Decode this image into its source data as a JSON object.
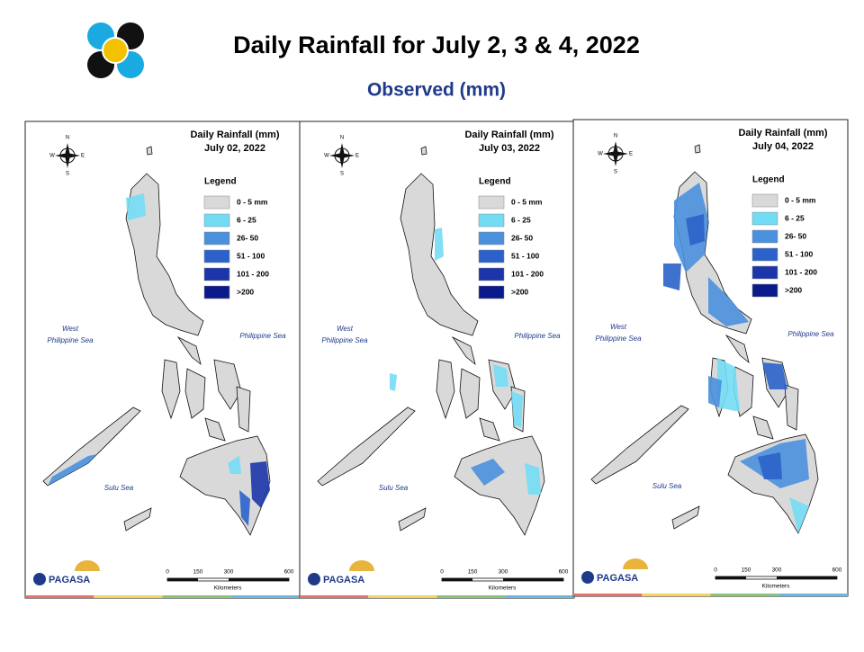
{
  "header": {
    "title": "Daily Rainfall for July 2, 3 & 4, 2022",
    "subtitle": "Observed (mm)"
  },
  "panels": [
    {
      "title": "Daily Rainfall (mm)",
      "date": "July 02, 2022",
      "legend_title": "Legend",
      "legend": [
        {
          "label": "0 - 5 mm",
          "color": "#d9d9d9"
        },
        {
          "label": "6 - 25",
          "color": "#73dcf5"
        },
        {
          "label": "26- 50",
          "color": "#4a90dd"
        },
        {
          "label": "51 - 100",
          "color": "#2a62c9"
        },
        {
          "label": "101 - 200",
          "color": "#1c35a8"
        },
        {
          "label": ">200",
          "color": "#0b1a8a"
        }
      ],
      "compass": [
        "N",
        "E",
        "S",
        "W"
      ],
      "seas": {
        "west_1": "West",
        "west_2": "Philippine Sea",
        "east": "Philippine Sea",
        "sulu": "Sulu Sea"
      },
      "scale": [
        "0",
        "150",
        "300",
        "600"
      ],
      "scale_unit": "Kilometers",
      "logo": "PAGASA"
    },
    {
      "title": "Daily Rainfall (mm)",
      "date": "July 03, 2022",
      "legend_title": "Legend",
      "legend": [
        {
          "label": "0 - 5 mm",
          "color": "#d9d9d9"
        },
        {
          "label": "6 - 25",
          "color": "#73dcf5"
        },
        {
          "label": "26- 50",
          "color": "#4a90dd"
        },
        {
          "label": "51 - 100",
          "color": "#2a62c9"
        },
        {
          "label": "101 - 200",
          "color": "#1c35a8"
        },
        {
          "label": ">200",
          "color": "#0b1a8a"
        }
      ],
      "compass": [
        "N",
        "E",
        "S",
        "W"
      ],
      "seas": {
        "west_1": "West",
        "west_2": "Philippine Sea",
        "east": "Philippine Sea",
        "sulu": "Sulu Sea"
      },
      "scale": [
        "0",
        "150",
        "300",
        "600"
      ],
      "scale_unit": "Kilometers",
      "logo": "PAGASA"
    },
    {
      "title": "Daily Rainfall (mm)",
      "date": "July 04, 2022",
      "legend_title": "Legend",
      "legend": [
        {
          "label": "0 - 5 mm",
          "color": "#d9d9d9"
        },
        {
          "label": "6 - 25",
          "color": "#73dcf5"
        },
        {
          "label": "26- 50",
          "color": "#4a90dd"
        },
        {
          "label": "51 - 100",
          "color": "#2a62c9"
        },
        {
          "label": "101 - 200",
          "color": "#1c35a8"
        },
        {
          "label": ">200",
          "color": "#0b1a8a"
        }
      ],
      "compass": [
        "N",
        "E",
        "S",
        "W"
      ],
      "seas": {
        "west_1": "West",
        "west_2": "Philippine Sea",
        "east": "Philippine Sea",
        "sulu": "Sulu Sea"
      },
      "scale": [
        "0",
        "150",
        "300",
        "600"
      ],
      "scale_unit": "Kilometers",
      "logo": "PAGASA"
    }
  ]
}
